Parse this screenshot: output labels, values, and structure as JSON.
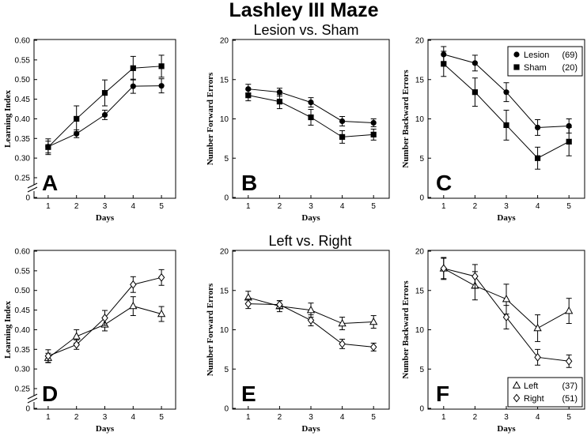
{
  "title": "Lashley III Maze",
  "chart_data": [
    {
      "type": "line",
      "panel": "A",
      "group_title": "Lesion vs. Sham",
      "xlabel": "Days",
      "ylabel": "Learning Index",
      "x": [
        1,
        2,
        3,
        4,
        5
      ],
      "xlim": [
        0.5,
        5.5
      ],
      "ylim": [
        0.25,
        0.6
      ],
      "yticks": [
        0.6,
        0.55,
        0.5,
        0.45,
        0.4,
        0.35,
        0.3,
        0.25
      ],
      "ytick_labels": [
        "0.60",
        "0.55",
        "0.50",
        "0.45",
        "0.40",
        "0.35",
        "0.30",
        "0.25"
      ],
      "axis_break": true,
      "y_zero_label": "0",
      "series": [
        {
          "marker": "circle",
          "values": [
            0.329,
            0.362,
            0.41,
            0.483,
            0.484
          ],
          "errors": [
            0.02,
            0.01,
            0.012,
            0.018,
            0.018
          ]
        },
        {
          "marker": "square",
          "values": [
            0.328,
            0.4,
            0.466,
            0.529,
            0.534
          ],
          "errors": [
            0.015,
            0.033,
            0.033,
            0.03,
            0.028
          ]
        }
      ]
    },
    {
      "type": "line",
      "panel": "B",
      "xlabel": "Days",
      "ylabel": "Number Forward Errors",
      "x": [
        1,
        2,
        3,
        4,
        5
      ],
      "xlim": [
        0.5,
        5.5
      ],
      "ylim": [
        0,
        20
      ],
      "yticks": [
        0,
        5,
        10,
        15,
        20
      ],
      "ytick_labels": [
        "0",
        "5",
        "10",
        "15",
        "20"
      ],
      "series": [
        {
          "marker": "circle",
          "values": [
            13.8,
            13.4,
            12.1,
            9.7,
            9.5
          ],
          "errors": [
            0.6,
            0.5,
            0.6,
            0.6,
            0.5
          ]
        },
        {
          "marker": "square",
          "values": [
            13.0,
            12.2,
            10.2,
            7.7,
            8.0
          ],
          "errors": [
            0.7,
            0.9,
            1.0,
            0.8,
            0.7
          ]
        }
      ]
    },
    {
      "type": "line",
      "panel": "C",
      "xlabel": "Days",
      "ylabel": "Number Backward Errors",
      "x": [
        1,
        2,
        3,
        4,
        5
      ],
      "xlim": [
        0.5,
        5.5
      ],
      "ylim": [
        0,
        20
      ],
      "yticks": [
        0,
        5,
        10,
        15,
        20
      ],
      "ytick_labels": [
        "0",
        "5",
        "10",
        "15",
        "20"
      ],
      "legend_position": "top-right",
      "series": [
        {
          "name": "Lesion",
          "n": "(69)",
          "marker": "circle",
          "values": [
            18.2,
            17.1,
            13.4,
            8.9,
            9.1
          ],
          "errors": [
            1.0,
            1.0,
            1.2,
            1.0,
            0.9
          ]
        },
        {
          "name": "Sham",
          "n": "(20)",
          "marker": "square",
          "values": [
            17.0,
            13.4,
            9.2,
            5.0,
            7.1
          ],
          "errors": [
            1.6,
            1.8,
            1.9,
            1.4,
            1.8
          ]
        }
      ]
    },
    {
      "type": "line",
      "panel": "D",
      "group_title": "Left vs. Right",
      "xlabel": "Days",
      "ylabel": "Learning Index",
      "x": [
        1,
        2,
        3,
        4,
        5
      ],
      "xlim": [
        0.5,
        5.5
      ],
      "ylim": [
        0.25,
        0.6
      ],
      "yticks": [
        0.6,
        0.55,
        0.5,
        0.45,
        0.4,
        0.35,
        0.3,
        0.25
      ],
      "ytick_labels": [
        "0.60",
        "0.55",
        "0.50",
        "0.45",
        "0.40",
        "0.35",
        "0.30",
        "0.25"
      ],
      "axis_break": true,
      "y_zero_label": "0",
      "series": [
        {
          "marker": "triangle",
          "values": [
            0.328,
            0.383,
            0.413,
            0.46,
            0.44
          ],
          "errors": [
            0.012,
            0.017,
            0.016,
            0.024,
            0.019
          ]
        },
        {
          "marker": "diamond",
          "values": [
            0.333,
            0.362,
            0.43,
            0.515,
            0.533
          ],
          "errors": [
            0.016,
            0.012,
            0.019,
            0.02,
            0.02
          ]
        }
      ]
    },
    {
      "type": "line",
      "panel": "E",
      "xlabel": "Days",
      "ylabel": "Number Forward Errors",
      "x": [
        1,
        2,
        3,
        4,
        5
      ],
      "xlim": [
        0.5,
        5.5
      ],
      "ylim": [
        0,
        20
      ],
      "yticks": [
        0,
        5,
        10,
        15,
        20
      ],
      "ytick_labels": [
        "0",
        "5",
        "10",
        "15",
        "20"
      ],
      "series": [
        {
          "marker": "triangle",
          "values": [
            14.1,
            13.0,
            12.5,
            10.8,
            11.0
          ],
          "errors": [
            0.8,
            0.7,
            0.9,
            0.8,
            0.8
          ]
        },
        {
          "marker": "diamond",
          "values": [
            13.3,
            13.2,
            11.2,
            8.2,
            7.8
          ],
          "errors": [
            0.6,
            0.5,
            0.7,
            0.6,
            0.5
          ]
        }
      ]
    },
    {
      "type": "line",
      "panel": "F",
      "xlabel": "Days",
      "ylabel": "Number Backward Errors",
      "x": [
        1,
        2,
        3,
        4,
        5
      ],
      "xlim": [
        0.5,
        5.5
      ],
      "ylim": [
        0,
        20
      ],
      "yticks": [
        0,
        5,
        10,
        15,
        20
      ],
      "ytick_labels": [
        "0",
        "5",
        "10",
        "15",
        "20"
      ],
      "legend_position": "bottom-right",
      "series": [
        {
          "name": "Left",
          "n": "(37)",
          "marker": "triangle",
          "values": [
            17.8,
            15.6,
            13.9,
            10.2,
            12.4
          ],
          "errors": [
            1.4,
            1.8,
            1.9,
            1.7,
            1.6
          ]
        },
        {
          "name": "Right",
          "n": "(51)",
          "marker": "diamond",
          "values": [
            17.8,
            16.8,
            11.6,
            6.5,
            6.0
          ],
          "errors": [
            1.3,
            1.5,
            1.5,
            1.0,
            0.8
          ]
        }
      ]
    }
  ]
}
